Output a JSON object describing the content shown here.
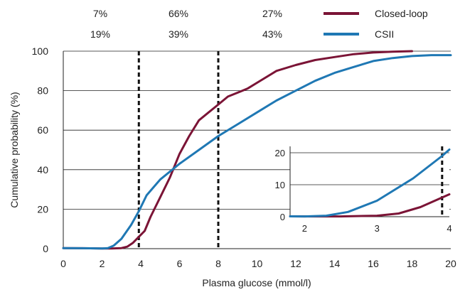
{
  "chart_data": {
    "type": "line",
    "title": "",
    "xlabel": "Plasma glucose (mmol/l)",
    "ylabel": "Cumulative probability (%)",
    "xlim": [
      0,
      20
    ],
    "ylim": [
      0,
      100
    ],
    "xticks": [
      "0",
      "2",
      "4",
      "6",
      "8",
      "10",
      "12",
      "14",
      "16",
      "18",
      "20"
    ],
    "yticks": [
      "0",
      "20",
      "40",
      "60",
      "80",
      "100"
    ],
    "grid": "horizontal",
    "legend_position": "top-right",
    "thresholds": [
      3.9,
      8.0
    ],
    "series": [
      {
        "name": "Closed-loop",
        "color": "#7b1436",
        "x": [
          0,
          1,
          2,
          2.5,
          3.0,
          3.3,
          3.6,
          3.9,
          4.2,
          4.5,
          5.0,
          5.5,
          6.0,
          6.5,
          7.0,
          7.5,
          8.0,
          8.5,
          9.0,
          9.5,
          10,
          11,
          12,
          13,
          14,
          15,
          16,
          17,
          18
        ],
        "values": [
          0.3,
          0.2,
          0.1,
          0.1,
          0.3,
          1.0,
          3.0,
          6.0,
          9.0,
          16,
          26,
          36,
          48,
          57,
          65,
          69,
          73,
          77,
          79,
          81,
          84,
          90,
          93,
          95.5,
          97,
          98.5,
          99.3,
          99.7,
          100
        ]
      },
      {
        "name": "CSII",
        "color": "#1f78b4",
        "x": [
          0,
          1,
          2,
          2.3,
          2.6,
          3.0,
          3.5,
          3.9,
          4.3,
          5.0,
          6.0,
          7.0,
          8.0,
          9.0,
          10,
          11,
          12,
          13,
          14,
          15,
          16,
          17,
          18,
          19,
          20
        ],
        "values": [
          0.3,
          0.2,
          0.1,
          0.3,
          1.5,
          5,
          12,
          19,
          27,
          35,
          43,
          50,
          57,
          63,
          69,
          75,
          80,
          85,
          89,
          92,
          95,
          96.5,
          97.5,
          98,
          98
        ]
      }
    ],
    "annotations": {
      "closed_loop_pct": [
        "7%",
        "66%",
        "27%"
      ],
      "csii_pct": [
        "19%",
        "39%",
        "43%"
      ]
    },
    "inset": {
      "xlim": [
        1.8,
        4.0
      ],
      "ylim": [
        0,
        22
      ],
      "xticks": [
        "2",
        "3",
        "4"
      ],
      "yticks": [
        "0",
        "10",
        "20"
      ],
      "threshold": 3.9
    }
  }
}
